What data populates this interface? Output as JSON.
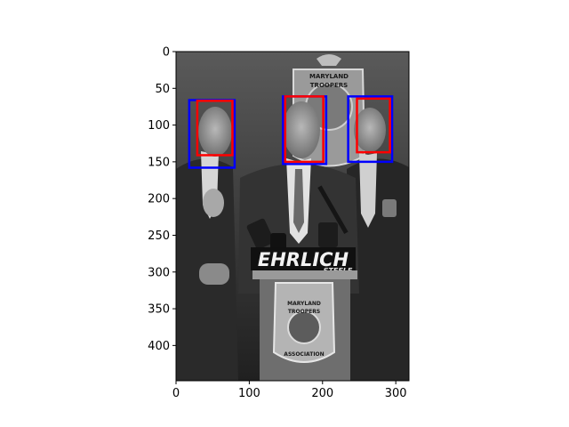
{
  "figure": {
    "background": "#ffffff",
    "image_description_name": "press-conference-photo",
    "photo_text": {
      "banner": "EHRLICH",
      "banner_sub": "STEELE",
      "badge_top": "MARYLAND",
      "badge_middle": "TROOPERS",
      "badge_bottom": "ASSOCIATION"
    }
  },
  "chart_data": {
    "type": "image",
    "title": "",
    "xlabel": "",
    "ylabel": "",
    "xlim": [
      0,
      318
    ],
    "ylim": [
      448,
      0
    ],
    "xticks": [
      0,
      100,
      200,
      300
    ],
    "yticks": [
      0,
      50,
      100,
      150,
      200,
      250,
      300,
      350,
      400
    ],
    "grid": false,
    "boxes": [
      {
        "name": "blue-box-1",
        "color": "#0000ff",
        "x0": 18,
        "y0": 66,
        "x1": 80,
        "y1": 158
      },
      {
        "name": "red-box-1",
        "color": "#ff0000",
        "x0": 29,
        "y0": 67,
        "x1": 77,
        "y1": 141
      },
      {
        "name": "blue-box-2",
        "color": "#0000ff",
        "x0": 146,
        "y0": 61,
        "x1": 205,
        "y1": 153
      },
      {
        "name": "red-box-2",
        "color": "#ff0000",
        "x0": 149,
        "y0": 61,
        "x1": 201,
        "y1": 150
      },
      {
        "name": "blue-box-3",
        "color": "#0000ff",
        "x0": 235,
        "y0": 61,
        "x1": 295,
        "y1": 150
      },
      {
        "name": "red-box-3",
        "color": "#ff0000",
        "x0": 247,
        "y0": 64,
        "x1": 292,
        "y1": 137
      }
    ]
  }
}
